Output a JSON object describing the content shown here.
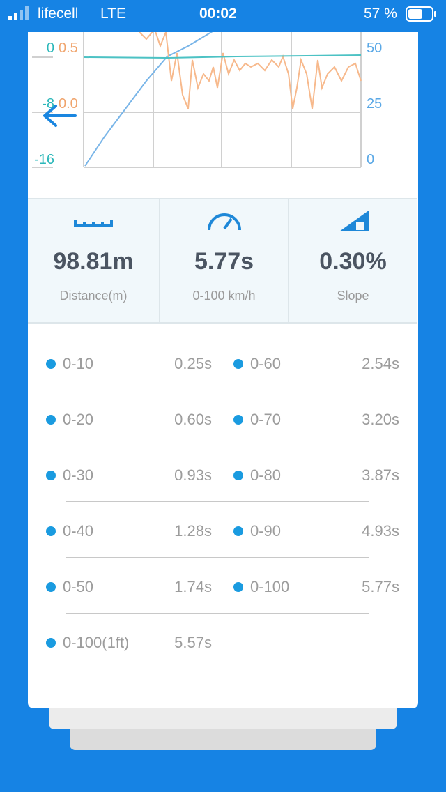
{
  "status_bar": {
    "carrier": "lifecell",
    "network": "LTE",
    "time": "00:02",
    "battery": "57 %"
  },
  "graph": {
    "left_ticks": [
      "0",
      "-8",
      "-16"
    ],
    "middle_ticks": [
      "0.5",
      "0.0"
    ],
    "right_ticks": [
      "50",
      "25",
      "0"
    ]
  },
  "stats": [
    {
      "value": "98.81m",
      "label": "Distance(m)"
    },
    {
      "value": "5.77s",
      "label": "0-100 km/h"
    },
    {
      "value": "0.30%",
      "label": "Slope"
    }
  ],
  "splits": {
    "left": [
      {
        "label": "0-10",
        "time": "0.25s"
      },
      {
        "label": "0-20",
        "time": "0.60s"
      },
      {
        "label": "0-30",
        "time": "0.93s"
      },
      {
        "label": "0-40",
        "time": "1.28s"
      },
      {
        "label": "0-50",
        "time": "1.74s"
      },
      {
        "label": "0-100(1ft)",
        "time": "5.57s"
      }
    ],
    "right": [
      {
        "label": "0-60",
        "time": "2.54s"
      },
      {
        "label": "0-70",
        "time": "3.20s"
      },
      {
        "label": "0-80",
        "time": "3.87s"
      },
      {
        "label": "0-90",
        "time": "4.93s"
      },
      {
        "label": "0-100",
        "time": "5.77s"
      }
    ]
  }
}
